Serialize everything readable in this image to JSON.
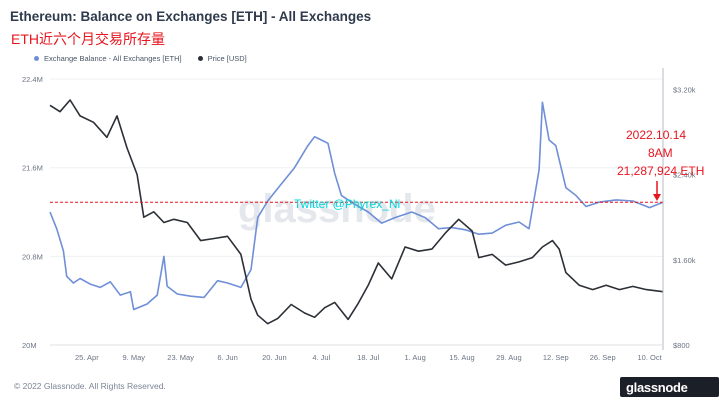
{
  "header": {
    "title": "Ethereum: Balance on Exchanges [ETH] - All Exchanges",
    "annotation": "ETH近六个月交易所存量"
  },
  "legend": {
    "balance_label": "Exchange Balance - All Exchanges [ETH]",
    "price_label": "Price [USD]"
  },
  "footer": {
    "copyright": "© 2022 Glassnode. All Rights Reserved."
  },
  "logo": {
    "text": "glassnode"
  },
  "watermark": {
    "text": "glassnode"
  },
  "overlay": {
    "twitter": "Twitter @Phyrex_Ni"
  },
  "callout": {
    "date": "2022.10.14",
    "time": "8AM",
    "amount": "21,287,924 ETH"
  },
  "colors": {
    "balance": "#6f8fd8",
    "price": "#2b2f36",
    "reference_line": "#e8141e",
    "callout": "#e8141e",
    "overlay": "#00d8d8"
  },
  "chart_data": {
    "type": "line",
    "x_ticks": [
      "25. Apr",
      "9. May",
      "23. May",
      "6. Jun",
      "20. Jun",
      "4. Jul",
      "18. Jul",
      "1. Aug",
      "15. Aug",
      "29. Aug",
      "12. Sep",
      "26. Sep",
      "10. Oct"
    ],
    "x_start": "2022-04-14",
    "x_end": "2022-10-14",
    "y_left": {
      "ticks": [
        "20M",
        "20.8M",
        "21.6M",
        "22.4M"
      ],
      "range": [
        20000000,
        22500000
      ]
    },
    "y_right": {
      "ticks": [
        "$800",
        "$1.60k",
        "$2.40k",
        "$3.20k"
      ],
      "range": [
        800,
        3400
      ],
      "scale": "linear"
    },
    "reference_line": {
      "axis": "left",
      "value": 21287924,
      "style": "dashed"
    },
    "series": [
      {
        "name": "Exchange Balance - All Exchanges [ETH]",
        "axis": "left",
        "x": [
          "2022-04-14",
          "2022-04-16",
          "2022-04-18",
          "2022-04-19",
          "2022-04-21",
          "2022-04-23",
          "2022-04-26",
          "2022-04-29",
          "2022-05-02",
          "2022-05-05",
          "2022-05-08",
          "2022-05-09",
          "2022-05-13",
          "2022-05-16",
          "2022-05-18",
          "2022-05-19",
          "2022-05-22",
          "2022-05-26",
          "2022-05-30",
          "2022-06-03",
          "2022-06-06",
          "2022-06-10",
          "2022-06-13",
          "2022-06-15",
          "2022-06-18",
          "2022-06-22",
          "2022-06-26",
          "2022-06-30",
          "2022-07-02",
          "2022-07-04",
          "2022-07-06",
          "2022-07-08",
          "2022-07-10",
          "2022-07-14",
          "2022-07-18",
          "2022-07-22",
          "2022-07-26",
          "2022-07-31",
          "2022-08-04",
          "2022-08-08",
          "2022-08-12",
          "2022-08-16",
          "2022-08-20",
          "2022-08-24",
          "2022-08-28",
          "2022-09-01",
          "2022-09-04",
          "2022-09-07",
          "2022-09-08",
          "2022-09-10",
          "2022-09-12",
          "2022-09-15",
          "2022-09-18",
          "2022-09-21",
          "2022-09-25",
          "2022-09-30",
          "2022-10-05",
          "2022-10-10",
          "2022-10-14"
        ],
        "values": [
          21200000,
          21050000,
          20850000,
          20620000,
          20560000,
          20600000,
          20550000,
          20520000,
          20570000,
          20450000,
          20480000,
          20320000,
          20370000,
          20450000,
          20800000,
          20530000,
          20460000,
          20440000,
          20430000,
          20580000,
          20560000,
          20520000,
          20680000,
          21150000,
          21300000,
          21450000,
          21600000,
          21800000,
          21880000,
          21850000,
          21820000,
          21550000,
          21350000,
          21270000,
          21200000,
          21100000,
          21150000,
          21200000,
          21150000,
          21050000,
          21060000,
          21040000,
          21000000,
          21010000,
          21080000,
          21110000,
          21050000,
          21580000,
          22190000,
          21850000,
          21800000,
          21420000,
          21350000,
          21250000,
          21290000,
          21310000,
          21300000,
          21240000,
          21287924
        ]
      },
      {
        "name": "Price [USD]",
        "axis": "right",
        "x": [
          "2022-04-14",
          "2022-04-17",
          "2022-04-20",
          "2022-04-23",
          "2022-04-27",
          "2022-05-01",
          "2022-05-04",
          "2022-05-07",
          "2022-05-10",
          "2022-05-12",
          "2022-05-15",
          "2022-05-18",
          "2022-05-21",
          "2022-05-25",
          "2022-05-29",
          "2022-06-02",
          "2022-06-06",
          "2022-06-10",
          "2022-06-13",
          "2022-06-15",
          "2022-06-18",
          "2022-06-21",
          "2022-06-25",
          "2022-06-29",
          "2022-07-02",
          "2022-07-05",
          "2022-07-08",
          "2022-07-12",
          "2022-07-15",
          "2022-07-18",
          "2022-07-21",
          "2022-07-25",
          "2022-07-29",
          "2022-08-02",
          "2022-08-06",
          "2022-08-10",
          "2022-08-14",
          "2022-08-18",
          "2022-08-20",
          "2022-08-24",
          "2022-08-28",
          "2022-09-01",
          "2022-09-05",
          "2022-09-08",
          "2022-09-11",
          "2022-09-13",
          "2022-09-15",
          "2022-09-19",
          "2022-09-23",
          "2022-09-27",
          "2022-10-01",
          "2022-10-05",
          "2022-10-09",
          "2022-10-14"
        ],
        "values": [
          3050,
          2990,
          3100,
          2950,
          2890,
          2750,
          2950,
          2650,
          2400,
          2000,
          2050,
          1950,
          1980,
          1950,
          1780,
          1800,
          1820,
          1650,
          1230,
          1080,
          1000,
          1050,
          1180,
          1100,
          1060,
          1150,
          1200,
          1040,
          1190,
          1360,
          1570,
          1420,
          1720,
          1680,
          1700,
          1850,
          1980,
          1870,
          1620,
          1650,
          1550,
          1580,
          1620,
          1720,
          1780,
          1700,
          1480,
          1360,
          1320,
          1360,
          1320,
          1350,
          1320,
          1300
        ]
      }
    ]
  }
}
